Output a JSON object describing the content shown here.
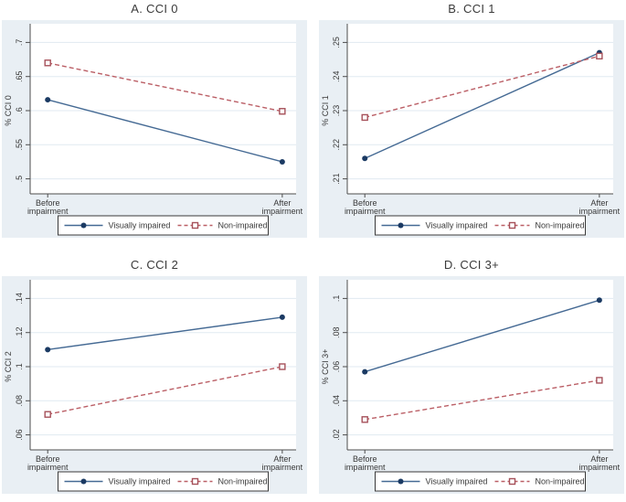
{
  "figure": {
    "description": "Four-panel line chart figure comparing visually impaired vs non-impaired groups before and after impairment"
  },
  "style": {
    "panel_bg": "#e9eff4",
    "plot_bg": "#ffffff",
    "grid_color": "#e0eaf1",
    "axis_color": "#4d4d4d",
    "text_color": "#383838",
    "legend_border": "#3a3a3a",
    "series_styles": [
      {
        "line": "#456a94",
        "marker": "#1b3a63",
        "marker_shape": "filled-circle",
        "dash": ""
      },
      {
        "line": "#bb5f66",
        "marker": "#a6515a",
        "marker_shape": "open-square",
        "dash": "5,3"
      }
    ]
  },
  "chart_data": [
    {
      "type": "line",
      "title": "A. CCI 0",
      "ylabel": "% CCI 0",
      "categories": [
        [
          "Before",
          "impairment"
        ],
        [
          "After",
          "impairment"
        ]
      ],
      "x_positions": [
        0.066,
        0.948
      ],
      "ytick_labels": [
        ".5",
        ".55",
        ".6",
        ".65",
        ".7"
      ],
      "ytick_values": [
        0.5,
        0.55,
        0.6,
        0.65,
        0.7
      ],
      "ylim": [
        0.478,
        0.722
      ],
      "grid": true,
      "legend_position": "bottom",
      "series": [
        {
          "name": "Visually impaired",
          "values": [
            0.616,
            0.525
          ]
        },
        {
          "name": "Non-impaired",
          "values": [
            0.67,
            0.599
          ]
        }
      ]
    },
    {
      "type": "line",
      "title": "B. CCI 1",
      "ylabel": "% CCI 1",
      "categories": [
        [
          "Before",
          "impairment"
        ],
        [
          "After",
          "impairment"
        ]
      ],
      "x_positions": [
        0.066,
        0.948
      ],
      "ytick_labels": [
        ".21",
        ".22",
        ".23",
        ".24",
        ".25"
      ],
      "ytick_values": [
        0.21,
        0.22,
        0.23,
        0.24,
        0.25
      ],
      "ylim": [
        0.2056,
        0.2544
      ],
      "grid": true,
      "legend_position": "bottom",
      "series": [
        {
          "name": "Visually impaired",
          "values": [
            0.216,
            0.247
          ]
        },
        {
          "name": "Non-impaired",
          "values": [
            0.228,
            0.246
          ]
        }
      ]
    },
    {
      "type": "line",
      "title": "C. CCI 2",
      "ylabel": "% CCI 2",
      "categories": [
        [
          "Before",
          "impairment"
        ],
        [
          "After",
          "impairment"
        ]
      ],
      "x_positions": [
        0.066,
        0.948
      ],
      "ytick_labels": [
        ".06",
        ".08",
        ".1",
        ".12",
        ".14"
      ],
      "ytick_values": [
        0.06,
        0.08,
        0.1,
        0.12,
        0.14
      ],
      "ylim": [
        0.0512,
        0.1488
      ],
      "grid": true,
      "legend_position": "bottom",
      "series": [
        {
          "name": "Visually impaired",
          "values": [
            0.11,
            0.129
          ]
        },
        {
          "name": "Non-impaired",
          "values": [
            0.072,
            0.1
          ]
        }
      ]
    },
    {
      "type": "line",
      "title": "D. CCI 3+",
      "ylabel": "% CCI 3+",
      "categories": [
        [
          "Before",
          "impairment"
        ],
        [
          "After",
          "impairment"
        ]
      ],
      "x_positions": [
        0.066,
        0.948
      ],
      "ytick_labels": [
        ".02",
        ".04",
        ".06",
        ".08",
        ".1"
      ],
      "ytick_values": [
        0.02,
        0.04,
        0.06,
        0.08,
        0.1
      ],
      "ylim": [
        0.0112,
        0.1088
      ],
      "grid": true,
      "legend_position": "bottom",
      "series": [
        {
          "name": "Visually impaired",
          "values": [
            0.057,
            0.099
          ]
        },
        {
          "name": "Non-impaired",
          "values": [
            0.029,
            0.052
          ]
        }
      ]
    }
  ]
}
